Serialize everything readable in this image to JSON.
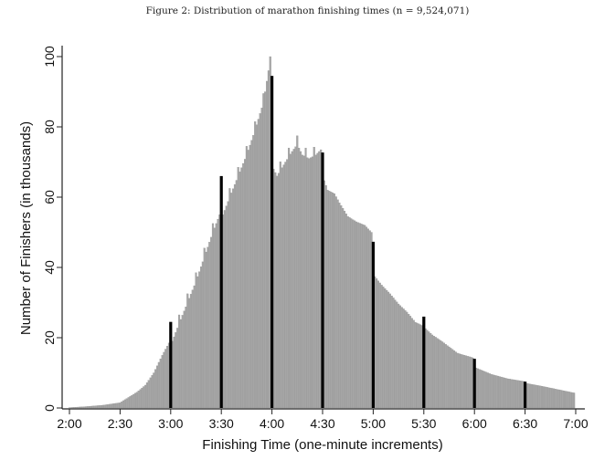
{
  "chart_data": {
    "type": "bar",
    "title": "Figure 2: Distribution of marathon finishing times (n = 9,524,071)",
    "xlabel": "Finishing Time (one-minute increments)",
    "ylabel": "Number of Finishers (in thousands)",
    "xlim_minutes_from_2h": [
      0,
      300
    ],
    "ylim": [
      0,
      100
    ],
    "x_ticks": [
      "2:00",
      "2:30",
      "3:00",
      "3:30",
      "4:00",
      "4:30",
      "5:00",
      "5:30",
      "6:00",
      "6:30",
      "7:00"
    ],
    "y_ticks": [
      "0",
      "20",
      "40",
      "60",
      "80",
      "100"
    ],
    "y_tick_values": [
      0,
      20,
      40,
      60,
      80,
      100
    ],
    "bar_width_minutes": 1,
    "colors": {
      "bars": "#a6a6a6",
      "highlight": "#000000",
      "axis": "#222222"
    },
    "series_minute_value_anchors": [
      [
        0,
        0.1
      ],
      [
        10,
        0.4
      ],
      [
        20,
        0.8
      ],
      [
        30,
        1.5
      ],
      [
        35,
        3
      ],
      [
        40,
        4.5
      ],
      [
        45,
        6.5
      ],
      [
        50,
        10
      ],
      [
        55,
        15
      ],
      [
        59,
        18.5
      ],
      [
        61,
        19
      ],
      [
        65,
        24
      ],
      [
        70,
        30
      ],
      [
        75,
        36
      ],
      [
        80,
        43
      ],
      [
        85,
        50
      ],
      [
        89,
        55
      ],
      [
        91,
        55
      ],
      [
        95,
        60
      ],
      [
        100,
        66
      ],
      [
        105,
        72
      ],
      [
        110,
        79
      ],
      [
        115,
        87
      ],
      [
        118,
        96
      ],
      [
        119,
        100
      ],
      [
        121,
        68
      ],
      [
        123,
        66
      ],
      [
        128,
        70
      ],
      [
        132,
        73
      ],
      [
        135,
        75
      ],
      [
        138,
        72
      ],
      [
        142,
        71
      ],
      [
        146,
        72
      ],
      [
        149,
        73.5
      ],
      [
        151,
        64.7
      ],
      [
        153,
        62
      ],
      [
        157,
        61
      ],
      [
        160,
        58.4
      ],
      [
        165,
        54.5
      ],
      [
        170,
        53
      ],
      [
        175,
        52
      ],
      [
        179,
        50
      ],
      [
        181,
        37.4
      ],
      [
        185,
        35
      ],
      [
        190,
        32.5
      ],
      [
        195,
        29.6
      ],
      [
        200,
        27.3
      ],
      [
        205,
        24.4
      ],
      [
        209,
        23.5
      ],
      [
        211,
        22.6
      ],
      [
        215,
        20.8
      ],
      [
        220,
        19.2
      ],
      [
        225,
        17.4
      ],
      [
        230,
        15.6
      ],
      [
        239,
        14.3
      ],
      [
        241,
        11.4
      ],
      [
        250,
        9.6
      ],
      [
        260,
        8.3
      ],
      [
        269,
        7.6
      ],
      [
        271,
        7.0
      ],
      [
        280,
        6.2
      ],
      [
        290,
        5.2
      ],
      [
        300,
        4.2
      ]
    ],
    "highlighted_bars": [
      {
        "label": "3:00",
        "minute": 60,
        "value": 24.5
      },
      {
        "label": "3:30",
        "minute": 90,
        "value": 66
      },
      {
        "label": "4:00",
        "minute": 120,
        "value": 94.5
      },
      {
        "label": "4:30",
        "minute": 150,
        "value": 72.7
      },
      {
        "label": "5:00",
        "minute": 180,
        "value": 47.3
      },
      {
        "label": "5:30",
        "minute": 210,
        "value": 26
      },
      {
        "label": "6:00",
        "minute": 240,
        "value": 14
      },
      {
        "label": "6:30",
        "minute": 270,
        "value": 7.5
      }
    ]
  }
}
